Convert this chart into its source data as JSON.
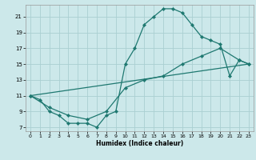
{
  "xlabel": "Humidex (Indice chaleur)",
  "bg_color": "#cce8ea",
  "grid_color": "#aacfd2",
  "line_color": "#1e7870",
  "xlim": [
    -0.5,
    23.5
  ],
  "ylim": [
    6.5,
    22.5
  ],
  "xticks": [
    0,
    1,
    2,
    3,
    4,
    5,
    6,
    7,
    8,
    9,
    10,
    11,
    12,
    13,
    14,
    15,
    16,
    17,
    18,
    19,
    20,
    21,
    22,
    23
  ],
  "yticks": [
    7,
    9,
    11,
    13,
    15,
    17,
    19,
    21
  ],
  "curve1_x": [
    0,
    1,
    2,
    3,
    4,
    5,
    6,
    7,
    8,
    9,
    10,
    11,
    12,
    13,
    14,
    15,
    16,
    17,
    18,
    19,
    20,
    21,
    22,
    23
  ],
  "curve1_y": [
    11,
    10.5,
    9,
    8.5,
    7.5,
    7.5,
    7.5,
    7,
    8.5,
    9,
    15,
    17,
    20,
    21,
    22,
    22,
    21.5,
    20,
    18.5,
    18,
    17.5,
    13.5,
    15.5,
    15
  ],
  "curve2_x": [
    0,
    2,
    4,
    6,
    8,
    10,
    12,
    14,
    16,
    18,
    20,
    22,
    23
  ],
  "curve2_y": [
    11,
    9.5,
    8.5,
    8,
    9,
    12,
    13,
    13.5,
    15,
    16,
    17,
    15.5,
    15
  ],
  "curve3_x": [
    0,
    23
  ],
  "curve3_y": [
    11,
    15
  ]
}
